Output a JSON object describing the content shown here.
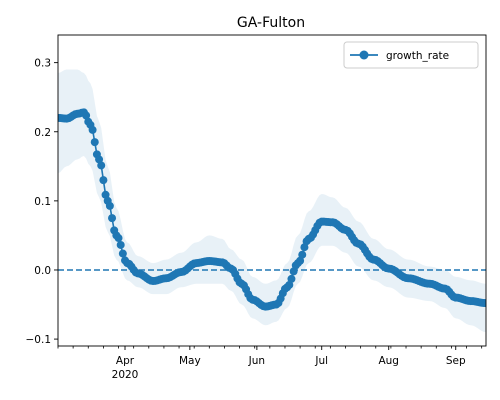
{
  "chart_data": {
    "type": "line",
    "title": "GA-Fulton",
    "xlabel": "",
    "ylabel": "",
    "x_axis": {
      "type": "date",
      "min": "2020-03-01",
      "max": "2020-09-15",
      "ticks": [
        {
          "date": "2020-04-01",
          "label": "Apr",
          "sublabel": "2020"
        },
        {
          "date": "2020-05-01",
          "label": "May"
        },
        {
          "date": "2020-06-01",
          "label": "Jun"
        },
        {
          "date": "2020-07-01",
          "label": "Jul"
        },
        {
          "date": "2020-08-01",
          "label": "Aug"
        },
        {
          "date": "2020-09-01",
          "label": "Sep"
        }
      ],
      "minor_tick_interval_days": 7
    },
    "y_axis": {
      "min": -0.11,
      "max": 0.34,
      "ticks": [
        -0.1,
        0.0,
        0.1,
        0.2,
        0.3
      ],
      "tick_labels": [
        "−0.1",
        "0.0",
        "0.1",
        "0.2",
        "0.3"
      ]
    },
    "reference_line": {
      "y": 0.0,
      "style": "dashed",
      "color": "#1f77b4"
    },
    "legend": {
      "position": "top-right",
      "entries": [
        "growth_rate"
      ]
    },
    "series": [
      {
        "name": "growth_rate",
        "color": "#1f77b4",
        "band_color": "#1f77b4",
        "start_date": "2020-03-01",
        "end_date": "2020-09-15",
        "anchors": [
          {
            "date": "2020-03-01",
            "y": 0.22,
            "lo": 0.14,
            "hi": 0.285
          },
          {
            "date": "2020-03-05",
            "y": 0.219,
            "lo": 0.15,
            "hi": 0.29
          },
          {
            "date": "2020-03-10",
            "y": 0.226,
            "lo": 0.16,
            "hi": 0.29
          },
          {
            "date": "2020-03-13",
            "y": 0.228,
            "lo": 0.165,
            "hi": 0.285
          },
          {
            "date": "2020-03-16",
            "y": 0.21,
            "lo": 0.15,
            "hi": 0.27
          },
          {
            "date": "2020-03-20",
            "y": 0.16,
            "lo": 0.105,
            "hi": 0.215
          },
          {
            "date": "2020-03-24",
            "y": 0.1,
            "lo": 0.055,
            "hi": 0.15
          },
          {
            "date": "2020-03-28",
            "y": 0.05,
            "lo": 0.015,
            "hi": 0.09
          },
          {
            "date": "2020-04-02",
            "y": 0.01,
            "lo": -0.015,
            "hi": 0.04
          },
          {
            "date": "2020-04-07",
            "y": -0.005,
            "lo": -0.025,
            "hi": 0.02
          },
          {
            "date": "2020-04-14",
            "y": -0.016,
            "lo": -0.035,
            "hi": 0.01
          },
          {
            "date": "2020-04-20",
            "y": -0.012,
            "lo": -0.035,
            "hi": 0.015
          },
          {
            "date": "2020-04-27",
            "y": -0.003,
            "lo": -0.025,
            "hi": 0.025
          },
          {
            "date": "2020-05-04",
            "y": 0.01,
            "lo": -0.02,
            "hi": 0.04
          },
          {
            "date": "2020-05-10",
            "y": 0.013,
            "lo": -0.02,
            "hi": 0.05
          },
          {
            "date": "2020-05-16",
            "y": 0.011,
            "lo": -0.02,
            "hi": 0.045
          },
          {
            "date": "2020-05-20",
            "y": 0.002,
            "lo": -0.03,
            "hi": 0.03
          },
          {
            "date": "2020-05-25",
            "y": -0.02,
            "lo": -0.05,
            "hi": 0.015
          },
          {
            "date": "2020-05-30",
            "y": -0.043,
            "lo": -0.07,
            "hi": -0.01
          },
          {
            "date": "2020-06-05",
            "y": -0.053,
            "lo": -0.08,
            "hi": -0.02
          },
          {
            "date": "2020-06-10",
            "y": -0.05,
            "lo": -0.075,
            "hi": -0.015
          },
          {
            "date": "2020-06-15",
            "y": -0.025,
            "lo": -0.055,
            "hi": 0.01
          },
          {
            "date": "2020-06-20",
            "y": 0.01,
            "lo": -0.02,
            "hi": 0.05
          },
          {
            "date": "2020-06-25",
            "y": 0.045,
            "lo": 0.01,
            "hi": 0.085
          },
          {
            "date": "2020-07-01",
            "y": 0.07,
            "lo": 0.035,
            "hi": 0.11
          },
          {
            "date": "2020-07-06",
            "y": 0.069,
            "lo": 0.035,
            "hi": 0.105
          },
          {
            "date": "2020-07-12",
            "y": 0.058,
            "lo": 0.025,
            "hi": 0.09
          },
          {
            "date": "2020-07-18",
            "y": 0.038,
            "lo": 0.005,
            "hi": 0.07
          },
          {
            "date": "2020-07-25",
            "y": 0.015,
            "lo": -0.015,
            "hi": 0.045
          },
          {
            "date": "2020-08-01",
            "y": 0.002,
            "lo": -0.025,
            "hi": 0.03
          },
          {
            "date": "2020-08-10",
            "y": -0.012,
            "lo": -0.04,
            "hi": 0.015
          },
          {
            "date": "2020-08-20",
            "y": -0.02,
            "lo": -0.045,
            "hi": 0.005
          },
          {
            "date": "2020-08-27",
            "y": -0.027,
            "lo": -0.055,
            "hi": 0.0
          },
          {
            "date": "2020-09-01",
            "y": -0.04,
            "lo": -0.07,
            "hi": -0.01
          },
          {
            "date": "2020-09-08",
            "y": -0.045,
            "lo": -0.08,
            "hi": -0.015
          },
          {
            "date": "2020-09-15",
            "y": -0.048,
            "lo": -0.09,
            "hi": -0.02
          }
        ]
      }
    ]
  }
}
